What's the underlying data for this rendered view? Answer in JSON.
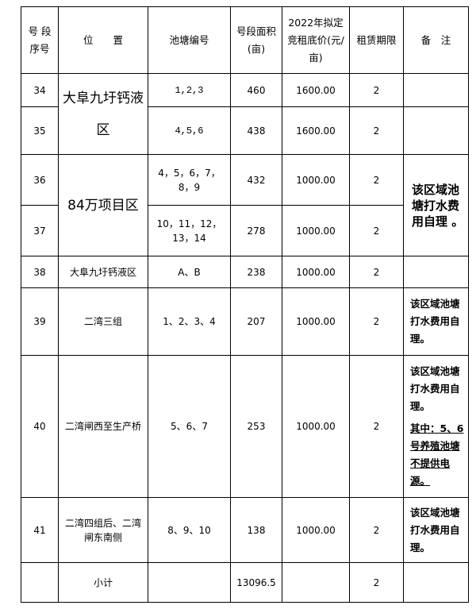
{
  "headers": [
    "号 段序号",
    "位　　置",
    "池塘编号",
    "号段面积(亩)",
    "2022年拟定竞租底价(元/亩)",
    "租赁期限",
    "备　注"
  ],
  "rows": [
    {
      "seq": "34",
      "location": "大阜九圩钙液区",
      "ponds": "1,2,3",
      "area": "460",
      "price": "1600.00",
      "term": "2",
      "note": ""
    },
    {
      "seq": "35",
      "ponds": "4,5,6",
      "area": "438",
      "price": "1600.00",
      "term": "2",
      "note": ""
    },
    {
      "seq": "36",
      "location": "84万项目区",
      "ponds": "4，5，6，7，8，9",
      "area": "432",
      "price": "1000.00",
      "term": "2",
      "note": "该区域池塘打水费用自理 。"
    },
    {
      "seq": "37",
      "ponds": "10，11，12，13，14",
      "area": "278",
      "price": "1000.00",
      "term": "2"
    },
    {
      "seq": "38",
      "location": "大阜九圩钙液区",
      "ponds": "A、B",
      "area": "238",
      "price": "1000.00",
      "term": "2",
      "note": ""
    },
    {
      "seq": "39",
      "location": "二湾三组",
      "ponds": "1、2、3、4",
      "area": "207",
      "price": "1000.00",
      "term": "2",
      "note": "该区域池塘打水费用自理。"
    },
    {
      "seq": "40",
      "location": "二湾闸西至生产桥",
      "ponds": "5、6、7",
      "area": "253",
      "price": "1000.00",
      "term": "2",
      "note": "该区域池塘打水费用自理。",
      "note2": "其中：5、6号养殖池塘不提供电源。"
    },
    {
      "seq": "41",
      "location": "二湾四组后、二湾闸东南侧",
      "ponds": "8、9、10",
      "area": "138",
      "price": "1000.00",
      "term": "2",
      "note": "该区域池塘打水费用自理。"
    }
  ],
  "subtotal": {
    "label": "小计",
    "area": "13096.5",
    "term": "2"
  }
}
